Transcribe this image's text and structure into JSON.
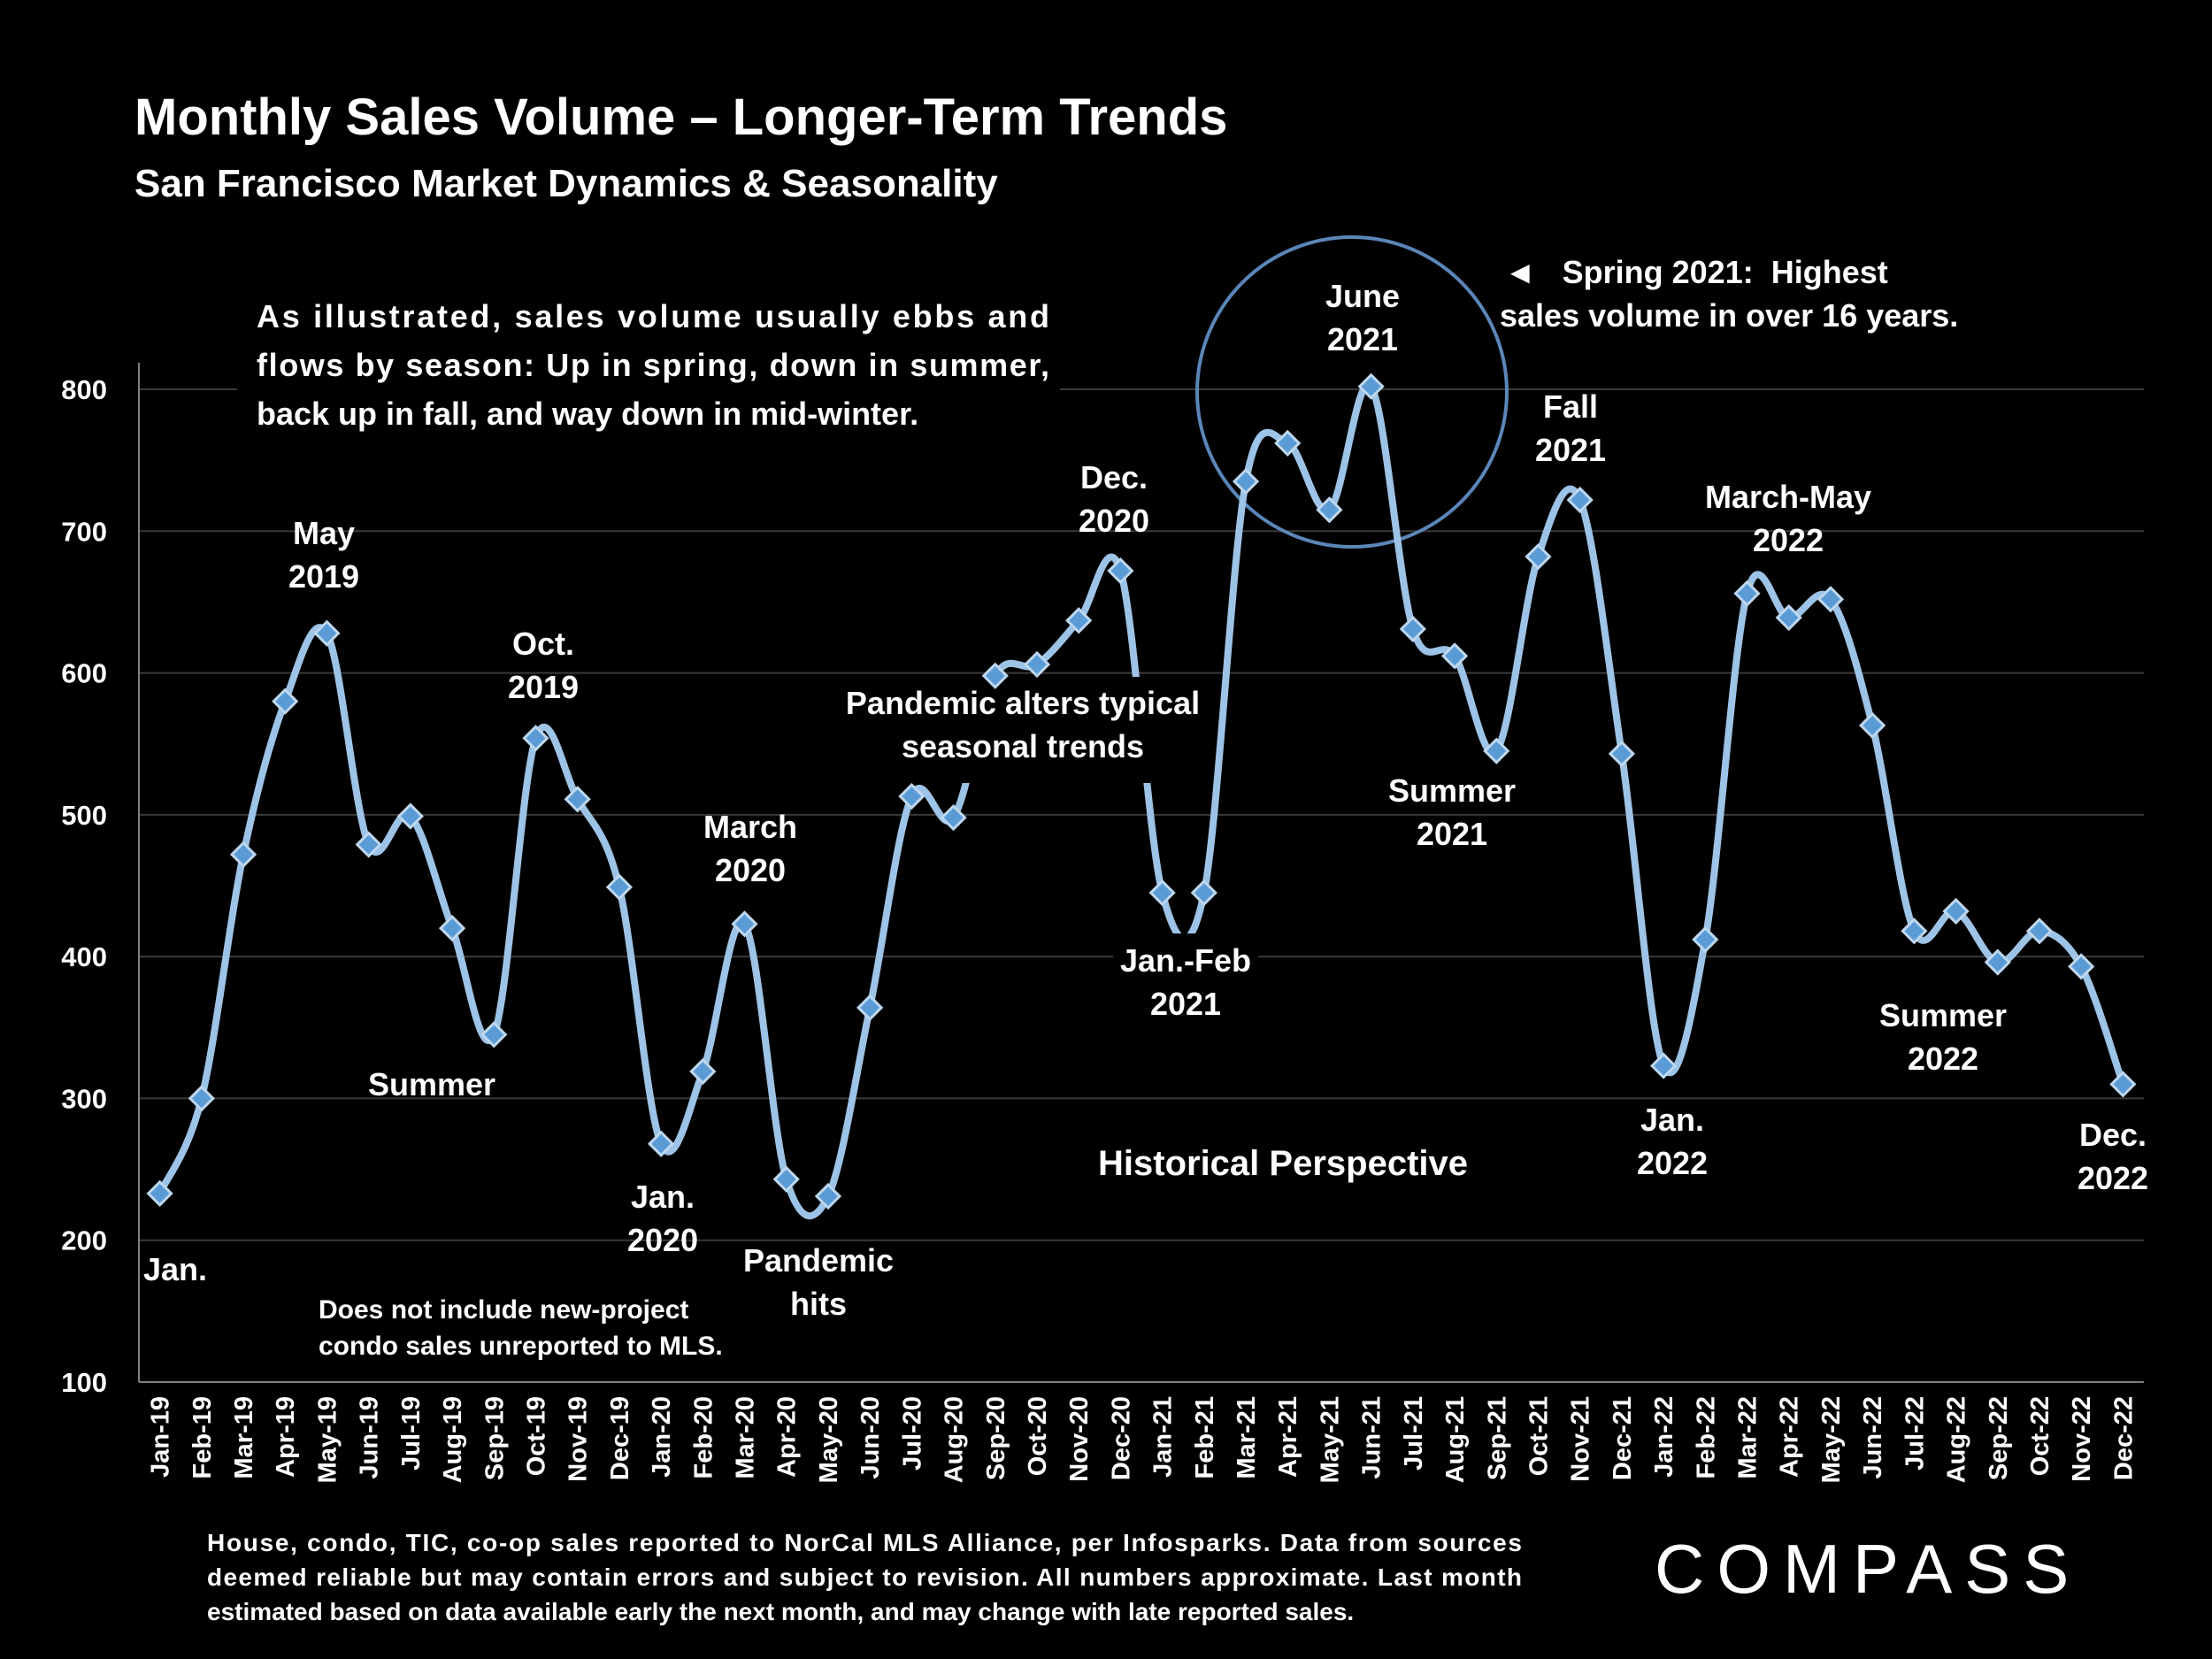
{
  "chart_data": {
    "type": "line",
    "title": "Monthly Sales Volume – Longer-Term Trends",
    "subtitle": "San Francisco Market Dynamics & Seasonality",
    "xlabel": "",
    "ylabel": "",
    "ylim": [
      100,
      800
    ],
    "yticks": [
      "100",
      "200",
      "300",
      "400",
      "500",
      "600",
      "700",
      "800"
    ],
    "grid": true,
    "categories": [
      "Jan-19",
      "Feb-19",
      "Mar-19",
      "Apr-19",
      "May-19",
      "Jun-19",
      "Jul-19",
      "Aug-19",
      "Sep-19",
      "Oct-19",
      "Nov-19",
      "Dec-19",
      "Jan-20",
      "Feb-20",
      "Mar-20",
      "Apr-20",
      "May-20",
      "Jun-20",
      "Jul-20",
      "Aug-20",
      "Sep-20",
      "Oct-20",
      "Nov-20",
      "Dec-20",
      "Jan-21",
      "Feb-21",
      "Mar-21",
      "Apr-21",
      "May-21",
      "Jun-21",
      "Jul-21",
      "Aug-21",
      "Sep-21",
      "Oct-21",
      "Nov-21",
      "Dec-21",
      "Jan-22",
      "Feb-22",
      "Mar-22",
      "Apr-22",
      "May-22",
      "Jun-22",
      "Jul-22",
      "Aug-22",
      "Sep-22",
      "Oct-22",
      "Nov-22",
      "Dec-22"
    ],
    "series": [
      {
        "values": [
          233,
          300,
          472,
          580,
          628,
          479,
          499,
          420,
          345,
          554,
          511,
          449,
          268,
          319,
          423,
          243,
          231,
          364,
          513,
          498,
          598,
          606,
          637,
          672,
          445,
          445,
          735,
          762,
          715,
          802,
          631,
          612,
          545,
          682,
          722,
          543,
          323,
          412,
          656,
          639,
          652,
          563,
          418,
          432,
          396,
          418,
          393,
          310
        ]
      }
    ],
    "colors": {
      "line": "#9dc3e6",
      "marker": "#5b9bd5",
      "marker_stroke": "#bdd7ee",
      "grid": "#3a3a3a",
      "circle": "#5b86b8"
    }
  },
  "annotations": {
    "intro": [
      "As illustrated, sales volume usually ebbs and",
      "flows by season: Up in spring, down in summer,",
      "back up in fall, and way down in mid-winter."
    ],
    "jan": "Jan.",
    "may2019": [
      "May",
      "2019"
    ],
    "summer": "Summer",
    "oct2019": [
      "Oct.",
      "2019"
    ],
    "jan2020": [
      "Jan.",
      "2020"
    ],
    "march2020": [
      "March",
      "2020"
    ],
    "pandemic_hits": [
      "Pandemic",
      "hits"
    ],
    "pandemic_alters": [
      "Pandemic alters typical",
      "seasonal trends"
    ],
    "dec2020": [
      "Dec.",
      "2020"
    ],
    "janfeb2021": [
      "Jan.-Feb",
      "2021"
    ],
    "june2021": [
      "June",
      "2021"
    ],
    "spring2021": [
      "◄   Spring 2021:  Highest",
      "sales volume in over 16 years."
    ],
    "fall2021": [
      "Fall",
      "2021"
    ],
    "summer2021": [
      "Summer",
      "2021"
    ],
    "historical": "Historical Perspective",
    "jan2022": [
      "Jan.",
      "2022"
    ],
    "marmay2022": [
      "March-May",
      "2022"
    ],
    "summer2022": [
      "Summer",
      "2022"
    ],
    "dec2022": [
      "Dec.",
      "2022"
    ],
    "mls_note": [
      "Does not include new-project",
      "condo sales unreported to MLS."
    ]
  },
  "footnote": [
    "House, condo, TIC, co-op sales reported to NorCal MLS Alliance, per Infosparks. Data from sources",
    "deemed reliable but may contain errors and subject to revision. All numbers approximate. Last month",
    "estimated based on data available early the next month, and may change with late reported sales."
  ],
  "brand": "COMPASS"
}
